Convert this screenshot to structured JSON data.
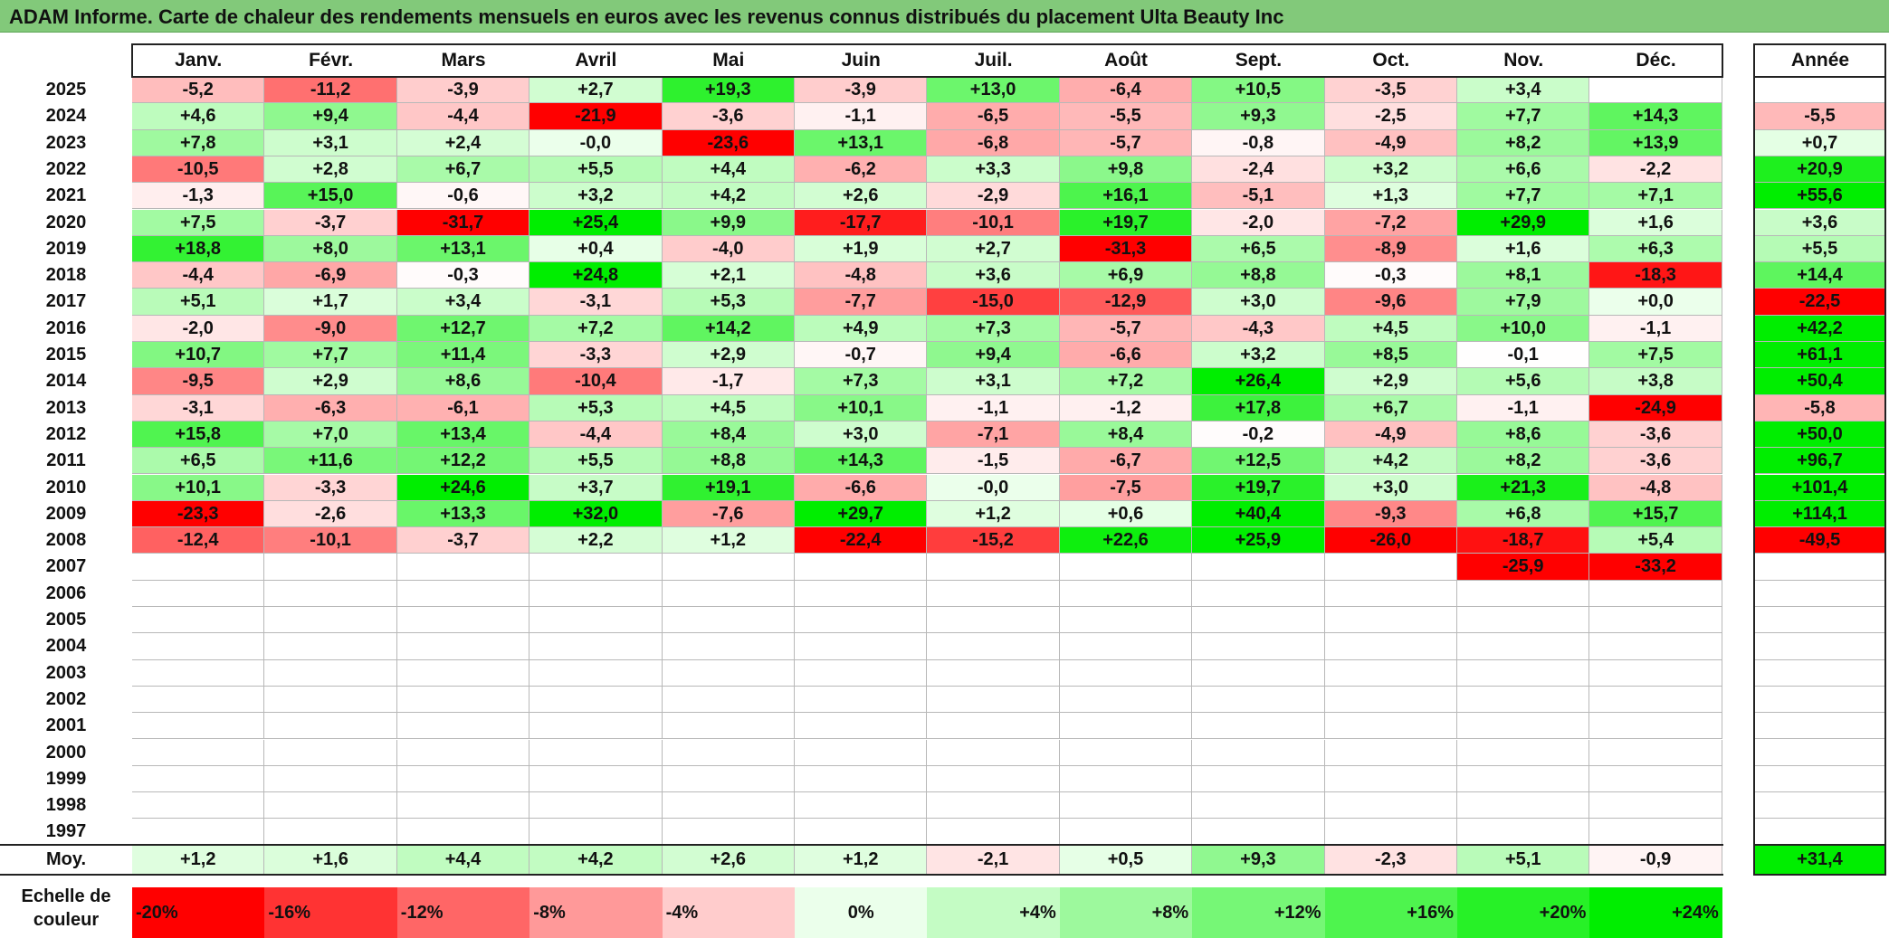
{
  "title": "ADAM Informe. Carte de chaleur des rendements mensuels en euros avec les revenus connus distribués du placement Ulta Beauty Inc",
  "chart_data": {
    "type": "heatmap",
    "months": [
      "Janv.",
      "Févr.",
      "Mars",
      "Avril",
      "Mai",
      "Juin",
      "Juil.",
      "Août",
      "Sept.",
      "Oct.",
      "Nov.",
      "Déc."
    ],
    "annual_header": "Année",
    "rows": [
      {
        "year": "2025",
        "values": [
          "-5,2",
          "-11,2",
          "-3,9",
          "+2,7",
          "+19,3",
          "-3,9",
          "+13,0",
          "-6,4",
          "+10,5",
          "-3,5",
          "+3,4",
          ""
        ],
        "annual": ""
      },
      {
        "year": "2024",
        "values": [
          "+4,6",
          "+9,4",
          "-4,4",
          "-21,9",
          "-3,6",
          "-1,1",
          "-6,5",
          "-5,5",
          "+9,3",
          "-2,5",
          "+7,7",
          "+14,3"
        ],
        "annual": "-5,5"
      },
      {
        "year": "2023",
        "values": [
          "+7,8",
          "+3,1",
          "+2,4",
          "-0,0",
          "-23,6",
          "+13,1",
          "-6,8",
          "-5,7",
          "-0,8",
          "-4,9",
          "+8,2",
          "+13,9"
        ],
        "annual": "+0,7"
      },
      {
        "year": "2022",
        "values": [
          "-10,5",
          "+2,8",
          "+6,7",
          "+5,5",
          "+4,4",
          "-6,2",
          "+3,3",
          "+9,8",
          "-2,4",
          "+3,2",
          "+6,6",
          "-2,2"
        ],
        "annual": "+20,9"
      },
      {
        "year": "2021",
        "values": [
          "-1,3",
          "+15,0",
          "-0,6",
          "+3,2",
          "+4,2",
          "+2,6",
          "-2,9",
          "+16,1",
          "-5,1",
          "+1,3",
          "+7,7",
          "+7,1"
        ],
        "annual": "+55,6"
      },
      {
        "year": "2020",
        "values": [
          "+7,5",
          "-3,7",
          "-31,7",
          "+25,4",
          "+9,9",
          "-17,7",
          "-10,1",
          "+19,7",
          "-2,0",
          "-7,2",
          "+29,9",
          "+1,6"
        ],
        "annual": "+3,6"
      },
      {
        "year": "2019",
        "values": [
          "+18,8",
          "+8,0",
          "+13,1",
          "+0,4",
          "-4,0",
          "+1,9",
          "+2,7",
          "-31,3",
          "+6,5",
          "-8,9",
          "+1,6",
          "+6,3"
        ],
        "annual": "+5,5"
      },
      {
        "year": "2018",
        "values": [
          "-4,4",
          "-6,9",
          "-0,3",
          "+24,8",
          "+2,1",
          "-4,8",
          "+3,6",
          "+6,9",
          "+8,8",
          "-0,3",
          "+8,1",
          "-18,3"
        ],
        "annual": "+14,4"
      },
      {
        "year": "2017",
        "values": [
          "+5,1",
          "+1,7",
          "+3,4",
          "-3,1",
          "+5,3",
          "-7,7",
          "-15,0",
          "-12,9",
          "+3,0",
          "-9,6",
          "+7,9",
          "+0,0"
        ],
        "annual": "-22,5"
      },
      {
        "year": "2016",
        "values": [
          "-2,0",
          "-9,0",
          "+12,7",
          "+7,2",
          "+14,2",
          "+4,9",
          "+7,3",
          "-5,7",
          "-4,3",
          "+4,5",
          "+10,0",
          "-1,1"
        ],
        "annual": "+42,2"
      },
      {
        "year": "2015",
        "values": [
          "+10,7",
          "+7,7",
          "+11,4",
          "-3,3",
          "+2,9",
          "-0,7",
          "+9,4",
          "-6,6",
          "+3,2",
          "+8,5",
          "-0,1",
          "+7,5"
        ],
        "annual": "+61,1"
      },
      {
        "year": "2014",
        "values": [
          "-9,5",
          "+2,9",
          "+8,6",
          "-10,4",
          "-1,7",
          "+7,3",
          "+3,1",
          "+7,2",
          "+26,4",
          "+2,9",
          "+5,6",
          "+3,8"
        ],
        "annual": "+50,4"
      },
      {
        "year": "2013",
        "values": [
          "-3,1",
          "-6,3",
          "-6,1",
          "+5,3",
          "+4,5",
          "+10,1",
          "-1,1",
          "-1,2",
          "+17,8",
          "+6,7",
          "-1,1",
          "-24,9"
        ],
        "annual": "-5,8"
      },
      {
        "year": "2012",
        "values": [
          "+15,8",
          "+7,0",
          "+13,4",
          "-4,4",
          "+8,4",
          "+3,0",
          "-7,1",
          "+8,4",
          "-0,2",
          "-4,9",
          "+8,6",
          "-3,6"
        ],
        "annual": "+50,0"
      },
      {
        "year": "2011",
        "values": [
          "+6,5",
          "+11,6",
          "+12,2",
          "+5,5",
          "+8,8",
          "+14,3",
          "-1,5",
          "-6,7",
          "+12,5",
          "+4,2",
          "+8,2",
          "-3,6"
        ],
        "annual": "+96,7"
      },
      {
        "year": "2010",
        "values": [
          "+10,1",
          "-3,3",
          "+24,6",
          "+3,7",
          "+19,1",
          "-6,6",
          "-0,0",
          "-7,5",
          "+19,7",
          "+3,0",
          "+21,3",
          "-4,8"
        ],
        "annual": "+101,4"
      },
      {
        "year": "2009",
        "values": [
          "-23,3",
          "-2,6",
          "+13,3",
          "+32,0",
          "-7,6",
          "+29,7",
          "+1,2",
          "+0,6",
          "+40,4",
          "-9,3",
          "+6,8",
          "+15,7"
        ],
        "annual": "+114,1"
      },
      {
        "year": "2008",
        "values": [
          "-12,4",
          "-10,1",
          "-3,7",
          "+2,2",
          "+1,2",
          "-22,4",
          "-15,2",
          "+22,6",
          "+25,9",
          "-26,0",
          "-18,7",
          "+5,4"
        ],
        "annual": "-49,5"
      },
      {
        "year": "2007",
        "values": [
          "",
          "",
          "",
          "",
          "",
          "",
          "",
          "",
          "",
          "",
          "-25,9",
          "-33,2"
        ],
        "annual": ""
      },
      {
        "year": "2006",
        "values": [
          "",
          "",
          "",
          "",
          "",
          "",
          "",
          "",
          "",
          "",
          "",
          ""
        ],
        "annual": ""
      },
      {
        "year": "2005",
        "values": [
          "",
          "",
          "",
          "",
          "",
          "",
          "",
          "",
          "",
          "",
          "",
          ""
        ],
        "annual": ""
      },
      {
        "year": "2004",
        "values": [
          "",
          "",
          "",
          "",
          "",
          "",
          "",
          "",
          "",
          "",
          "",
          ""
        ],
        "annual": ""
      },
      {
        "year": "2003",
        "values": [
          "",
          "",
          "",
          "",
          "",
          "",
          "",
          "",
          "",
          "",
          "",
          ""
        ],
        "annual": ""
      },
      {
        "year": "2002",
        "values": [
          "",
          "",
          "",
          "",
          "",
          "",
          "",
          "",
          "",
          "",
          "",
          ""
        ],
        "annual": ""
      },
      {
        "year": "2001",
        "values": [
          "",
          "",
          "",
          "",
          "",
          "",
          "",
          "",
          "",
          "",
          "",
          ""
        ],
        "annual": ""
      },
      {
        "year": "2000",
        "values": [
          "",
          "",
          "",
          "",
          "",
          "",
          "",
          "",
          "",
          "",
          "",
          ""
        ],
        "annual": ""
      },
      {
        "year": "1999",
        "values": [
          "",
          "",
          "",
          "",
          "",
          "",
          "",
          "",
          "",
          "",
          "",
          ""
        ],
        "annual": ""
      },
      {
        "year": "1998",
        "values": [
          "",
          "",
          "",
          "",
          "",
          "",
          "",
          "",
          "",
          "",
          "",
          ""
        ],
        "annual": ""
      },
      {
        "year": "1997",
        "values": [
          "",
          "",
          "",
          "",
          "",
          "",
          "",
          "",
          "",
          "",
          "",
          ""
        ],
        "annual": ""
      }
    ],
    "average": {
      "label": "Moy.",
      "values": [
        "+1,2",
        "+1,6",
        "+4,4",
        "+4,2",
        "+2,6",
        "+1,2",
        "-2,1",
        "+0,5",
        "+9,3",
        "-2,3",
        "+5,1",
        "-0,9"
      ],
      "annual": "+31,4"
    },
    "color_scale": {
      "label": "Echelle de couleur",
      "stops": [
        "-20%",
        "-16%",
        "-12%",
        "-8%",
        "-4%",
        "0%",
        "+4%",
        "+8%",
        "+12%",
        "+16%",
        "+20%",
        "+24%"
      ]
    },
    "colors": {
      "negative_max": "#ff0000",
      "positive_max": "#00ee00",
      "neutral": "#ffffff",
      "title_bar": "#82c97a"
    }
  }
}
